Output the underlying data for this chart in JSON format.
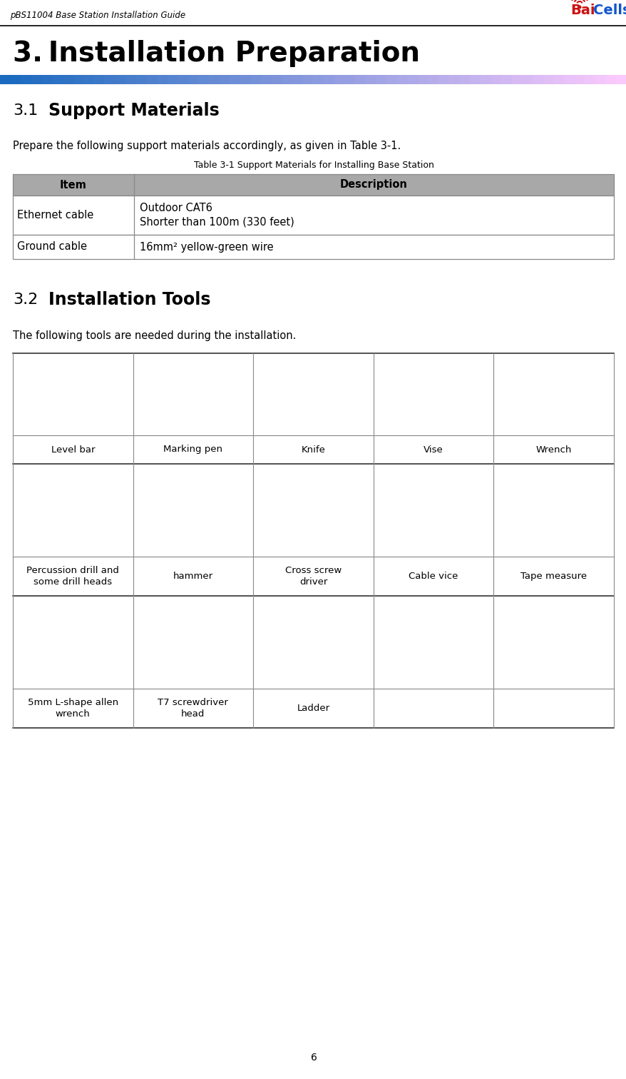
{
  "header_text": "pBS11004 Base Station Installation Guide",
  "chapter_title": "3. Installation Preparation",
  "section1_number": "3.1",
  "section1_title": "Support Materials",
  "section1_body": "Prepare the following support materials accordingly, as given in Table 3-1.",
  "table_caption": "Table 3-1 Support Materials for Installing Base Station",
  "table_header_bg": "#a8a8a8",
  "table_header_text": [
    "Item",
    "Description"
  ],
  "table_rows": [
    [
      "Ethernet cable",
      "Outdoor CAT6\nShorter than 100m (330 feet)"
    ],
    [
      "Ground cable",
      "16mm² yellow-green wire"
    ]
  ],
  "section2_number": "3.2",
  "section2_title": "Installation Tools",
  "section2_body": "The following tools are needed during the installation.",
  "tools_row1": [
    "Level bar",
    "Marking pen",
    "Knife",
    "Vise",
    "Wrench"
  ],
  "tools_row2": [
    "Percussion drill and\nsome drill heads",
    "hammer",
    "Cross screw\ndriver",
    "Cable vice",
    "Tape measure"
  ],
  "tools_row3": [
    "5mm L-shape allen\nwrench",
    "T7 screwdriver\nhead",
    "Ladder",
    "",
    ""
  ],
  "page_number": "6",
  "bg_color": "#ffffff",
  "header_line_color": "#000000",
  "blue_bar_start": "#1a6abf",
  "blue_bar_end": "#ffffff",
  "table_border_color": "#888888",
  "grid_border_color": "#888888"
}
